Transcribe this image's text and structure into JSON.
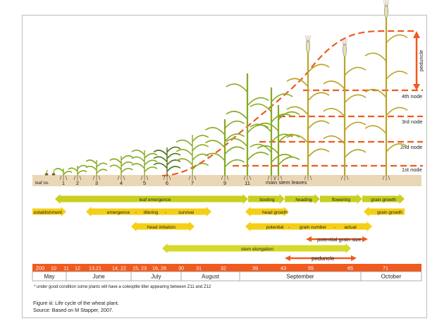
{
  "colors": {
    "orange": "#f05a1e",
    "yellow": "#f5cf16",
    "leaf_bar": "#c8cf1e",
    "leaf_bar_light": "#d7d92b",
    "ground": "#ead7b5",
    "plant_green": "#86ab22",
    "plant_dark": "#4d7315",
    "timeline_bar": "#f05a1e"
  },
  "node_labels": [
    "4th node",
    "3rd node",
    "2nd node",
    "1st node"
  ],
  "peduncle_vertical_label": "peduncle",
  "leaf_row": {
    "label": "leaf no.",
    "numbers": [
      "1",
      "2",
      "3",
      "4",
      "5",
      "6",
      "7",
      "9",
      "11"
    ],
    "main_stem_leaves": "main stem leaves"
  },
  "stage_bars": {
    "leaf_emergence": "leaf emergence",
    "booting": "booting",
    "heading": "heading",
    "flowering": "flowering",
    "grain_growth_top": "grain growth",
    "establishment": "establishment",
    "emergence": "emergence",
    "dash": "-",
    "tillering": "tillering",
    "survival": "survival",
    "head_growth": "head growth",
    "grain_growth": "grain growth",
    "head_initiation": "head initiation",
    "potential": "potential",
    "grain_number": "grain number",
    "actual": "actual",
    "potential_grain_size": "potential grain size",
    "stem_elongation": "stem elongation",
    "peduncle": "peduncle"
  },
  "zadoks": [
    "Z00",
    "10",
    "11",
    "12",
    "13,21",
    "14, 22",
    "15, 23",
    "16, 26",
    "30",
    "31",
    "32",
    "39",
    "43",
    "55",
    "65",
    "71"
  ],
  "months": [
    "May",
    "June",
    "July",
    "August",
    "September",
    "October"
  ],
  "footnote": "* under good condition some plants will have a coleoptile tiller appearing between Z11 and Z12",
  "caption_line1": "Figure  iii: Life cycle of the wheat plant.",
  "caption_line2": "Source: Based on M Stapper, 2007."
}
